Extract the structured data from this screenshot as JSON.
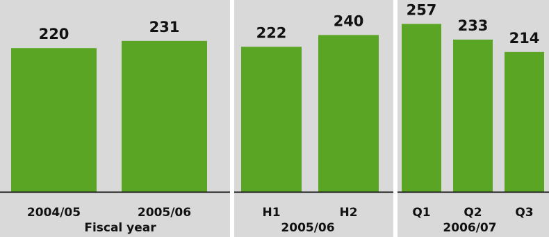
{
  "chart_data": [
    {
      "type": "bar",
      "categories": [
        "2004/05",
        "2005/06"
      ],
      "values": [
        220,
        231
      ],
      "xlabel": "Fiscal year",
      "color": "#5aa523"
    },
    {
      "type": "bar",
      "categories": [
        "H1",
        "H2"
      ],
      "values": [
        222,
        240
      ],
      "xlabel": "2005/06",
      "color": "#5aa523"
    },
    {
      "type": "bar",
      "categories": [
        "Q1",
        "Q2",
        "Q3"
      ],
      "values": [
        257,
        233,
        214
      ],
      "xlabel": "2006/07",
      "color": "#5aa523"
    }
  ],
  "colors": {
    "panel_background": "#d9d9d9",
    "bar": "#5aa523",
    "baseline": "#1a1a1a",
    "separator": "#ffffff"
  }
}
